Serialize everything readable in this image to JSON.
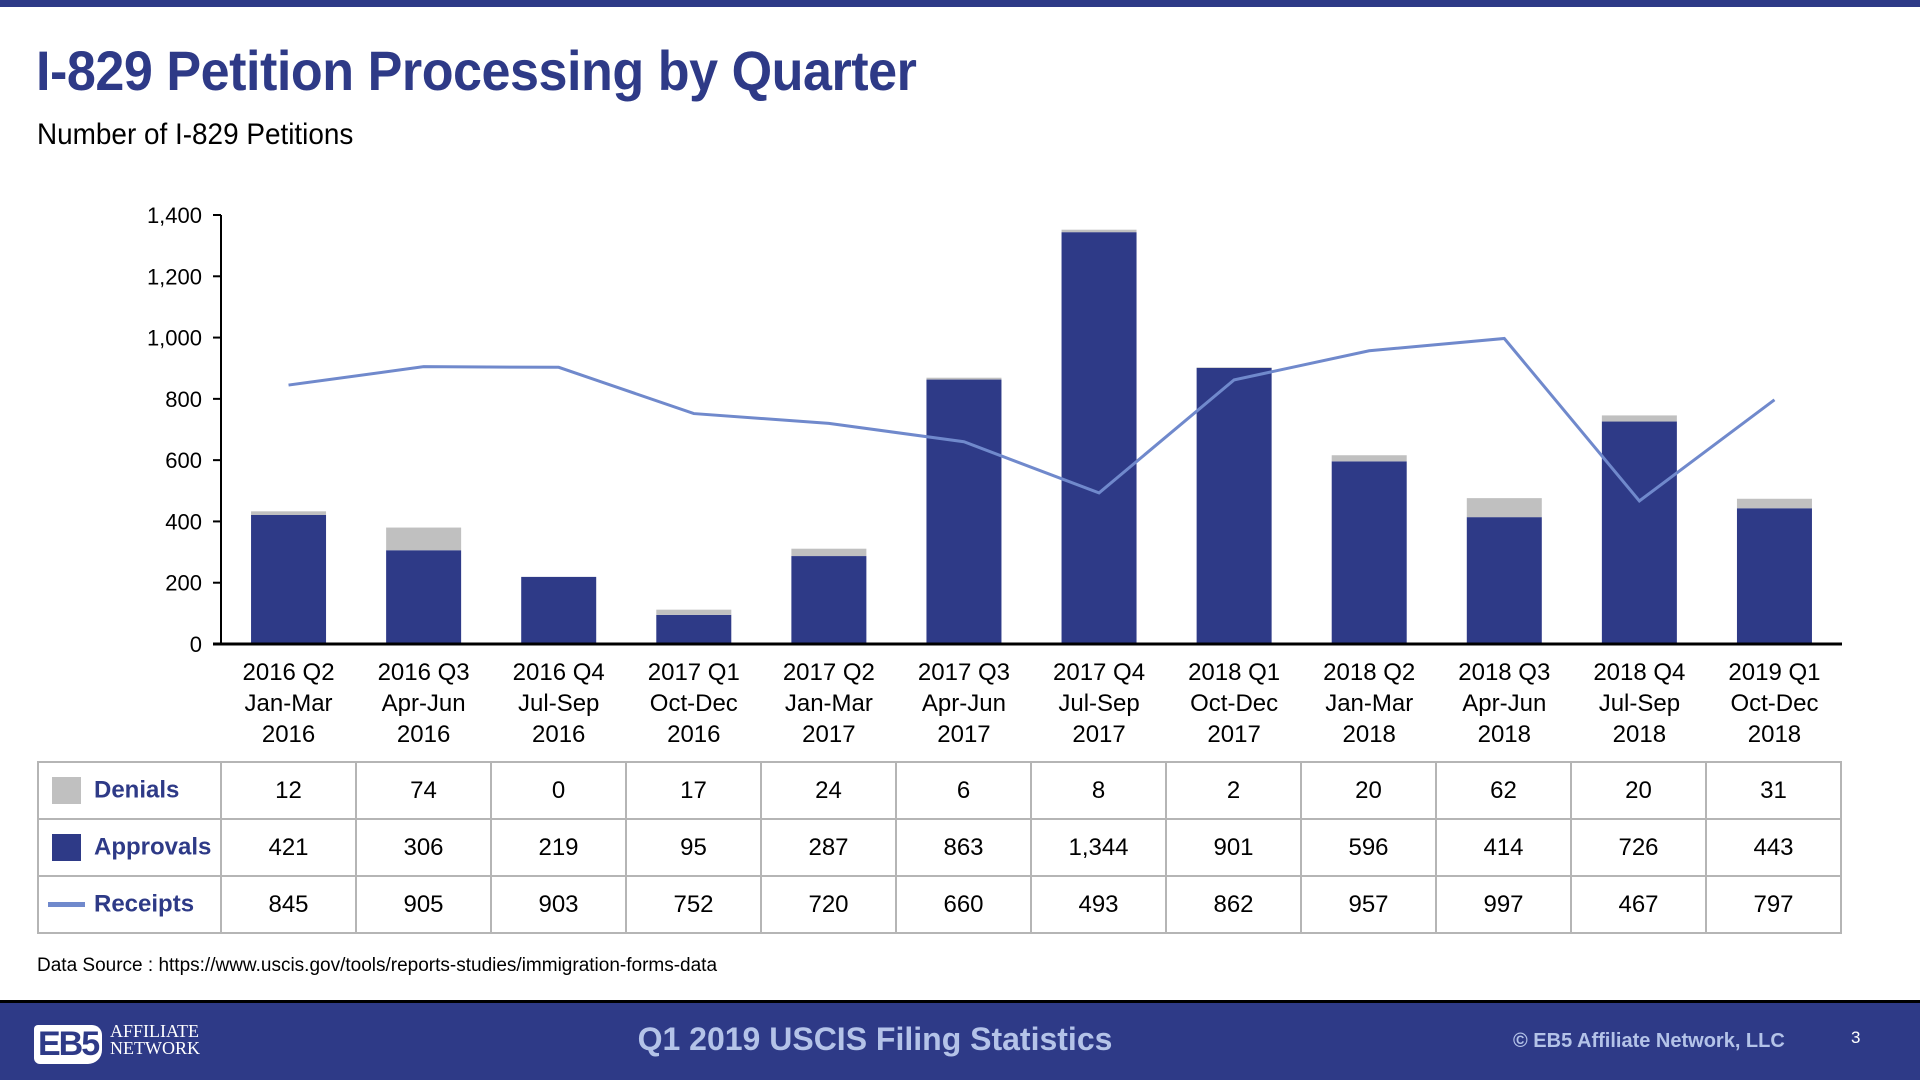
{
  "slide": {
    "title": "I-829 Petition Processing by Quarter",
    "subtitle": "Number of I-829 Petitions",
    "data_source": "Data Source : https://www.uscis.gov/tools/reports-studies/immigration-forms-data",
    "footer_title": "Q1 2019 USCIS Filing Statistics",
    "copyright": "© EB5 Affiliate Network, LLC",
    "page_number": "3",
    "logo": {
      "mark": "EB5",
      "line1": "AFFILIATE",
      "line2": "NETWORK"
    }
  },
  "colors": {
    "approvals": "#2E3A87",
    "denials": "#C0C0C0",
    "receipts": "#7089CC",
    "brand": "#2E3A87"
  },
  "table": {
    "rows": [
      {
        "label": "Denials",
        "swatch": "gray-square",
        "values": [
          "12",
          "74",
          "0",
          "17",
          "24",
          "6",
          "8",
          "2",
          "20",
          "62",
          "20",
          "31"
        ]
      },
      {
        "label": "Approvals",
        "swatch": "navy-square",
        "values": [
          "421",
          "306",
          "219",
          "95",
          "287",
          "863",
          "1,344",
          "901",
          "596",
          "414",
          "726",
          "443"
        ]
      },
      {
        "label": "Receipts",
        "swatch": "blue-line",
        "values": [
          "845",
          "905",
          "903",
          "752",
          "720",
          "660",
          "493",
          "862",
          "957",
          "997",
          "467",
          "797"
        ]
      }
    ]
  },
  "chart_data": {
    "type": "bar",
    "stacked": true,
    "title": "I-829 Petition Processing by Quarter",
    "ylabel": "Number of I-829 Petitions",
    "xlabel": "",
    "ylim": [
      0,
      1400
    ],
    "yticks": [
      0,
      200,
      400,
      600,
      800,
      1000,
      1200,
      1400
    ],
    "ytick_labels": [
      "0",
      "200",
      "400",
      "600",
      "800",
      "1,000",
      "1,200",
      "1,400"
    ],
    "grid": false,
    "legend": "data-table-below",
    "categories": [
      [
        "2016 Q2",
        "Jan-Mar",
        "2016"
      ],
      [
        "2016 Q3",
        "Apr-Jun",
        "2016"
      ],
      [
        "2016 Q4",
        "Jul-Sep",
        "2016"
      ],
      [
        "2017 Q1",
        "Oct-Dec",
        "2016"
      ],
      [
        "2017 Q2",
        "Jan-Mar",
        "2017"
      ],
      [
        "2017 Q3",
        "Apr-Jun",
        "2017"
      ],
      [
        "2017 Q4",
        "Jul-Sep",
        "2017"
      ],
      [
        "2018 Q1",
        "Oct-Dec",
        "2017"
      ],
      [
        "2018 Q2",
        "Jan-Mar",
        "2018"
      ],
      [
        "2018 Q3",
        "Apr-Jun",
        "2018"
      ],
      [
        "2018 Q4",
        "Jul-Sep",
        "2018"
      ],
      [
        "2019 Q1",
        "Oct-Dec",
        "2018"
      ]
    ],
    "series": [
      {
        "name": "Approvals",
        "type": "bar",
        "values": [
          421,
          306,
          219,
          95,
          287,
          863,
          1344,
          901,
          596,
          414,
          726,
          443
        ]
      },
      {
        "name": "Denials",
        "type": "bar",
        "values": [
          12,
          74,
          0,
          17,
          24,
          6,
          8,
          2,
          20,
          62,
          20,
          31
        ]
      },
      {
        "name": "Receipts",
        "type": "line",
        "values": [
          845,
          905,
          903,
          752,
          720,
          660,
          493,
          862,
          957,
          997,
          467,
          797
        ]
      }
    ]
  }
}
